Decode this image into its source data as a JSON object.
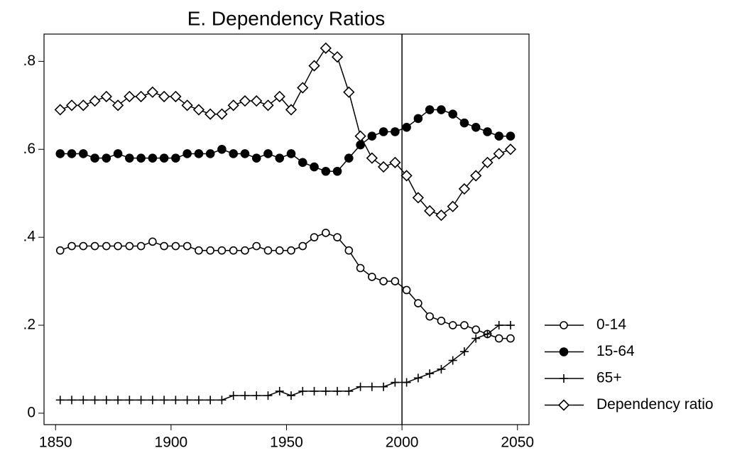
{
  "chart_data": {
    "type": "line",
    "title": "E. Dependency Ratios",
    "x": [
      1852,
      1857,
      1862,
      1867,
      1872,
      1877,
      1882,
      1887,
      1892,
      1897,
      1902,
      1907,
      1912,
      1917,
      1922,
      1927,
      1932,
      1937,
      1942,
      1947,
      1952,
      1957,
      1962,
      1967,
      1972,
      1977,
      1982,
      1987,
      1992,
      1997,
      2002,
      2007,
      2012,
      2017,
      2022,
      2027,
      2032,
      2037,
      2042,
      2047
    ],
    "series": [
      {
        "name": "0-14",
        "color": "#000000",
        "marker": "circle-open",
        "values": [
          0.37,
          0.38,
          0.38,
          0.38,
          0.38,
          0.38,
          0.38,
          0.38,
          0.39,
          0.38,
          0.38,
          0.38,
          0.37,
          0.37,
          0.37,
          0.37,
          0.37,
          0.38,
          0.37,
          0.37,
          0.37,
          0.38,
          0.4,
          0.41,
          0.4,
          0.37,
          0.33,
          0.31,
          0.3,
          0.3,
          0.28,
          0.25,
          0.22,
          0.21,
          0.2,
          0.2,
          0.19,
          0.18,
          0.17,
          0.17
        ]
      },
      {
        "name": "15-64",
        "color": "#000000",
        "marker": "circle-filled",
        "values": [
          0.59,
          0.59,
          0.59,
          0.58,
          0.58,
          0.59,
          0.58,
          0.58,
          0.58,
          0.58,
          0.58,
          0.59,
          0.59,
          0.59,
          0.6,
          0.59,
          0.59,
          0.58,
          0.59,
          0.58,
          0.59,
          0.57,
          0.56,
          0.55,
          0.55,
          0.58,
          0.61,
          0.63,
          0.64,
          0.64,
          0.65,
          0.67,
          0.69,
          0.69,
          0.68,
          0.66,
          0.65,
          0.64,
          0.63,
          0.63
        ]
      },
      {
        "name": "65+",
        "color": "#000000",
        "marker": "plus",
        "values": [
          0.03,
          0.03,
          0.03,
          0.03,
          0.03,
          0.03,
          0.03,
          0.03,
          0.03,
          0.03,
          0.03,
          0.03,
          0.03,
          0.03,
          0.03,
          0.04,
          0.04,
          0.04,
          0.04,
          0.05,
          0.04,
          0.05,
          0.05,
          0.05,
          0.05,
          0.05,
          0.06,
          0.06,
          0.06,
          0.07,
          0.07,
          0.08,
          0.09,
          0.1,
          0.12,
          0.14,
          0.17,
          0.18,
          0.2,
          0.2
        ]
      },
      {
        "name": "Dependency ratio",
        "color": "#000000",
        "marker": "diamond-open",
        "values": [
          0.69,
          0.7,
          0.7,
          0.71,
          0.72,
          0.7,
          0.72,
          0.72,
          0.73,
          0.72,
          0.72,
          0.7,
          0.69,
          0.68,
          0.68,
          0.7,
          0.71,
          0.71,
          0.7,
          0.72,
          0.69,
          0.74,
          0.79,
          0.83,
          0.81,
          0.73,
          0.63,
          0.58,
          0.56,
          0.57,
          0.54,
          0.49,
          0.46,
          0.45,
          0.47,
          0.51,
          0.54,
          0.57,
          0.59,
          0.6
        ]
      }
    ],
    "xlim": [
      1845,
      2055
    ],
    "xticks": [
      1850,
      1900,
      1950,
      2000,
      2050
    ],
    "ylim": [
      -0.026,
      0.862
    ],
    "yticks": [
      0,
      {
        "value": 0.2,
        "label": ".2"
      },
      {
        "value": 0.4,
        "label": ".4"
      },
      {
        "value": 0.6,
        "label": ".6"
      },
      {
        "value": 0.8,
        "label": ".8"
      }
    ],
    "xline": 2000,
    "legend": "right"
  }
}
